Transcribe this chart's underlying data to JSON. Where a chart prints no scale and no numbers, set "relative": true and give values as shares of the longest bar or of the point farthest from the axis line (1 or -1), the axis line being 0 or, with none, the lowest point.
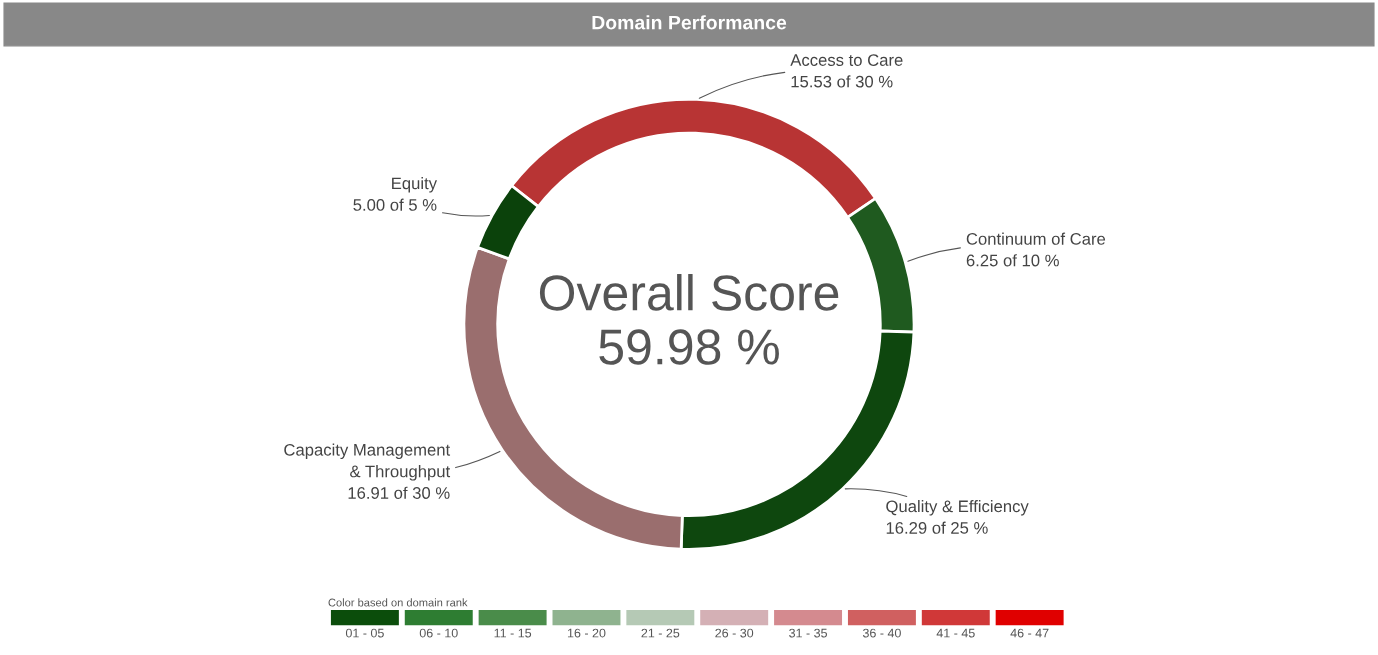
{
  "chart_data": [
    {
      "type": "donut",
      "title": "Domain Performance",
      "categories": [
        "Access to Care",
        "Continuum of Care",
        "Quality & Efficiency",
        "Capacity Management\n& Throughput",
        "Equity"
      ],
      "values": [
        30,
        10,
        25,
        30,
        5
      ],
      "colors": [
        "#b83434",
        "#1f5a1f",
        "#0e470e",
        "#9a6e6e",
        "#0b420b"
      ],
      "value_labels": [
        "15.53 of 30 %",
        "6.25 of 10 %",
        "16.29 of 25 %",
        "16.91 of 30 %",
        "5.00 of 5 %"
      ],
      "annotations": [
        "Overall Score",
        "59.98 %"
      ],
      "legend": false
    },
    {
      "type": "bar",
      "title": "Color based on domain rank",
      "relative": true,
      "categories": [
        "01 - 05",
        "06 - 10",
        "11 - 15",
        "16 - 20",
        "21 - 25",
        "26 - 30",
        "31 - 35",
        "36 - 40",
        "41 - 45",
        "46 - 47"
      ],
      "values": [
        1,
        1,
        1,
        1,
        1,
        1,
        1,
        1,
        1,
        1
      ],
      "colors": [
        "#0b4d0b",
        "#2e7d32",
        "#4a8c4a",
        "#8fb38f",
        "#b5c9b5",
        "#d4b0b5",
        "#d48a8f",
        "#d06060",
        "#d03838",
        "#e00000"
      ]
    }
  ]
}
